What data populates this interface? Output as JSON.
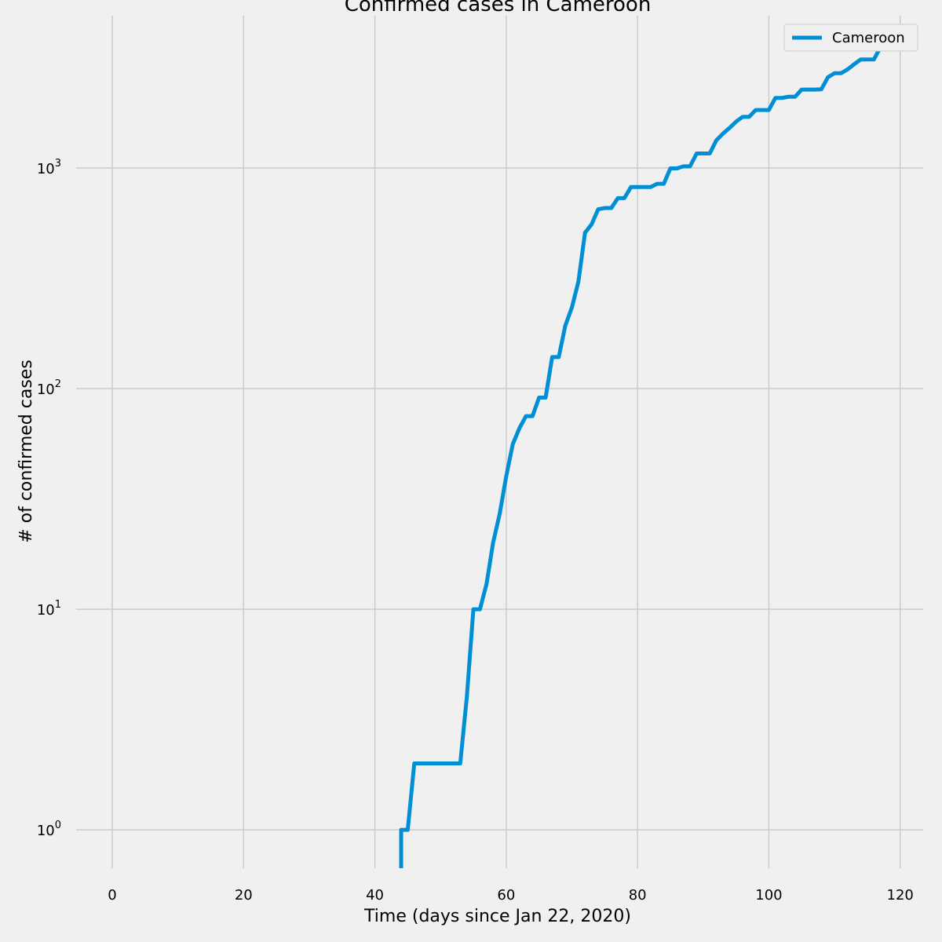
{
  "chart_data": {
    "type": "line",
    "title": "Confirmed cases in Cameroon",
    "xlabel": "Time (days since Jan 22, 2020)",
    "ylabel": "# of confirmed cases",
    "yscale": "log",
    "grid": true,
    "legend_position": "top-right",
    "xlim": [
      -5.5,
      123.5
    ],
    "xticks": [
      0,
      20,
      40,
      60,
      80,
      100,
      120
    ],
    "ylim": [
      0.67,
      4900
    ],
    "yticks": [
      1,
      10,
      100,
      1000
    ],
    "ytick_labels": [
      {
        "base": "10",
        "exp": "0"
      },
      {
        "base": "10",
        "exp": "1"
      },
      {
        "base": "10",
        "exp": "2"
      },
      {
        "base": "10",
        "exp": "3"
      }
    ],
    "series": [
      {
        "name": "Cameroon",
        "color": "#008fd5",
        "x": [
          44,
          45,
          46,
          47,
          48,
          49,
          50,
          51,
          52,
          53,
          54,
          55,
          56,
          57,
          58,
          59,
          60,
          61,
          62,
          63,
          64,
          65,
          66,
          67,
          68,
          69,
          70,
          71,
          72,
          73,
          74,
          75,
          76,
          77,
          78,
          79,
          80,
          81,
          82,
          83,
          84,
          85,
          86,
          87,
          88,
          89,
          90,
          91,
          92,
          93,
          94,
          95,
          96,
          97,
          98,
          99,
          100,
          101,
          102,
          103,
          104,
          105,
          106,
          107,
          108,
          109,
          110,
          111,
          112,
          113,
          114,
          115,
          116,
          117,
          118
        ],
        "y": [
          1,
          1,
          2,
          2,
          2,
          2,
          2,
          2,
          2,
          2,
          4,
          10,
          10,
          13,
          20,
          27,
          40,
          56,
          66,
          75,
          75,
          91,
          91,
          139,
          139,
          193,
          233,
          306,
          509,
          555,
          650,
          658,
          658,
          730,
          730,
          820,
          820,
          820,
          820,
          848,
          848,
          996,
          996,
          1017,
          1017,
          1163,
          1163,
          1163,
          1334,
          1430,
          1518,
          1621,
          1705,
          1705,
          1832,
          1832,
          1832,
          2077,
          2077,
          2104,
          2104,
          2267,
          2267,
          2267,
          2274,
          2579,
          2689,
          2689,
          2800,
          2954,
          3105,
          3105,
          3105,
          3529,
          3529
        ]
      }
    ]
  }
}
